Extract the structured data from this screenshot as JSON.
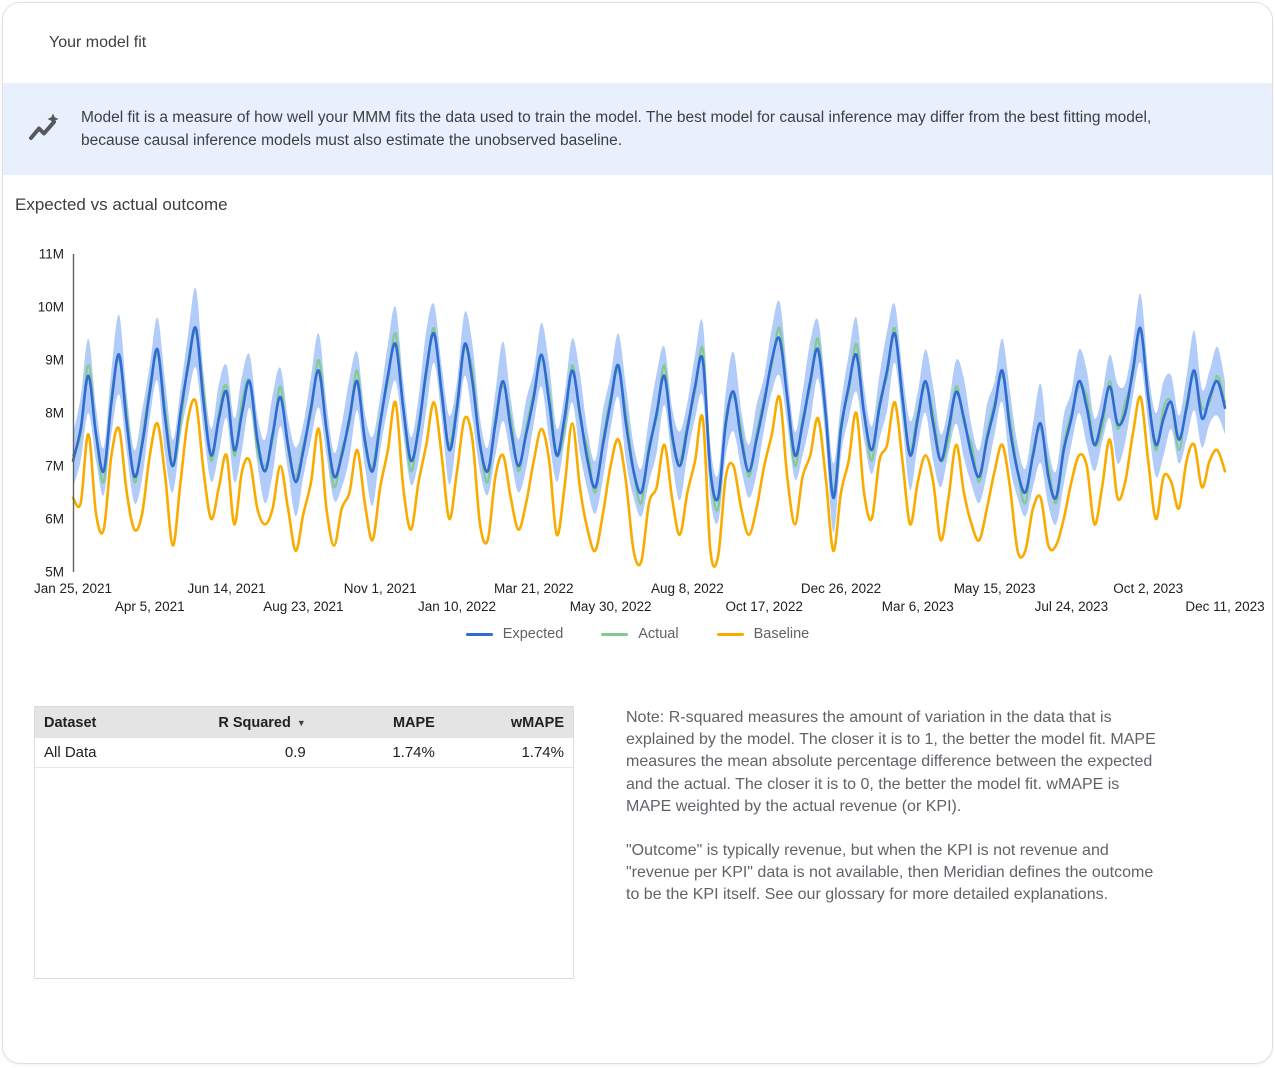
{
  "header": {
    "title": "Your model fit"
  },
  "banner": {
    "icon": "insights-trend-sparkle-icon",
    "background_color": "#e8f0fe",
    "text": "Model fit is a measure of how well your MMM fits the data used to train the model. The best model for causal inference may differ from the best fitting model, because causal inference models must also estimate the unobserved baseline."
  },
  "chart_section": {
    "title": "Expected vs actual outcome"
  },
  "chart_data": {
    "type": "line",
    "title": "Expected vs actual outcome",
    "grid": false,
    "x_unit": "weekly time points",
    "x_range_labels": [
      "Jan 25, 2021",
      "Dec 11, 2023"
    ],
    "x_tick_labels": [
      "Jan 25, 2021",
      "Apr 5, 2021",
      "Jun 14, 2021",
      "Aug 23, 2021",
      "Nov 1, 2021",
      "Jan 10, 2022",
      "Mar 21, 2022",
      "May 30, 2022",
      "Aug 8, 2022",
      "Oct 17, 2022",
      "Dec 26, 2022",
      "Mar 6, 2023",
      "May 15, 2023",
      "Jul 24, 2023",
      "Oct 2, 2023",
      "Dec 11, 2023"
    ],
    "x_ticks_every_n_points": 10,
    "y_tick_labels": [
      "11M",
      "10M",
      "9M",
      "8M",
      "7M",
      "6M",
      "5M"
    ],
    "ylim_millions": [
      5,
      11
    ],
    "legend": {
      "position": "bottom",
      "entries": [
        {
          "label": "Expected",
          "color": "#2f6bd3"
        },
        {
          "label": "Actual",
          "color": "#85c98e"
        },
        {
          "label": "Baseline",
          "color": "#f9ab00"
        }
      ]
    },
    "band": {
      "name": "expected credible interval",
      "color": "#b1ccf8",
      "halfwidth_m": [
        0.5,
        0.6,
        0.7,
        0.5,
        0.45,
        0.6,
        0.75,
        0.55,
        0.5,
        0.65,
        0.5,
        0.6,
        0.7,
        0.5,
        0.45,
        0.6,
        0.75,
        0.55,
        0.5,
        0.65,
        0.5,
        0.6,
        0.7,
        0.5,
        0.45,
        0.6,
        0.75,
        0.55,
        0.5,
        0.65,
        0.5,
        0.6,
        0.7,
        0.5,
        0.45,
        0.6,
        0.75,
        0.55,
        0.5,
        0.65,
        0.5,
        0.6,
        0.7,
        0.5,
        0.45,
        0.6,
        0.75,
        0.55,
        0.5,
        0.65,
        0.5,
        0.6,
        0.7,
        0.5,
        0.45,
        0.6,
        0.75,
        0.55,
        0.5,
        0.65,
        0.5,
        0.6,
        0.7,
        0.5,
        0.45,
        0.6,
        0.75,
        0.55,
        0.5,
        0.65,
        0.5,
        0.6,
        0.7,
        0.5,
        0.45,
        0.6,
        0.75,
        0.55,
        0.5,
        0.65,
        0.5,
        0.6,
        0.7,
        0.5,
        0.45,
        0.6,
        0.75,
        0.55,
        0.5,
        0.65,
        0.5,
        0.6,
        0.7,
        0.5,
        0.45,
        0.6,
        0.75,
        0.55,
        0.5,
        0.65,
        0.5,
        0.6,
        0.7,
        0.5,
        0.45,
        0.6,
        0.75,
        0.55,
        0.5,
        0.65,
        0.5,
        0.6,
        0.7,
        0.5,
        0.45,
        0.6,
        0.75,
        0.55,
        0.5,
        0.65,
        0.5,
        0.6,
        0.7,
        0.5,
        0.45,
        0.6,
        0.75,
        0.55,
        0.5,
        0.65,
        0.5,
        0.6,
        0.7,
        0.5,
        0.45,
        0.6,
        0.75,
        0.55,
        0.5,
        0.65,
        0.5,
        0.6,
        0.7,
        0.5,
        0.45,
        0.6,
        0.75,
        0.55,
        0.5,
        0.65,
        0.5
      ]
    },
    "series": [
      {
        "name": "Expected",
        "color": "#2f6bd3",
        "values_m": [
          7.1,
          7.7,
          8.7,
          7.6,
          6.9,
          8.2,
          9.1,
          7.8,
          6.8,
          7.4,
          8.4,
          9.2,
          7.9,
          7.0,
          8.0,
          8.9,
          9.6,
          8.2,
          7.2,
          7.9,
          8.4,
          7.3,
          8.0,
          8.6,
          7.5,
          6.9,
          7.6,
          8.3,
          7.4,
          6.7,
          7.3,
          8.1,
          8.8,
          7.7,
          6.8,
          7.2,
          7.9,
          8.6,
          7.5,
          6.9,
          7.8,
          8.7,
          9.3,
          8.1,
          7.1,
          7.7,
          8.8,
          9.5,
          8.4,
          7.3,
          8.1,
          9.3,
          8.6,
          7.4,
          6.9,
          7.8,
          8.6,
          7.7,
          7.0,
          7.6,
          8.3,
          9.1,
          8.2,
          7.2,
          7.9,
          8.8,
          8.0,
          7.1,
          6.6,
          7.4,
          8.2,
          8.9,
          7.8,
          6.9,
          6.5,
          7.3,
          8.0,
          8.7,
          7.6,
          7.0,
          7.7,
          8.5,
          9.0,
          6.9,
          6.4,
          7.8,
          8.4,
          7.5,
          6.9,
          7.5,
          8.2,
          9.0,
          9.4,
          8.3,
          7.2,
          7.8,
          8.6,
          9.2,
          8.0,
          6.4,
          7.7,
          8.5,
          9.1,
          8.0,
          7.3,
          8.1,
          8.8,
          9.5,
          8.3,
          7.2,
          7.9,
          8.6,
          7.8,
          7.1,
          7.7,
          8.4,
          7.9,
          7.2,
          6.8,
          7.5,
          8.1,
          8.8,
          7.7,
          6.9,
          6.5,
          7.2,
          7.8,
          6.8,
          6.4,
          7.3,
          7.9,
          8.6,
          8.1,
          7.4,
          7.9,
          8.5,
          7.8,
          8.0,
          8.8,
          9.6,
          8.3,
          7.4,
          7.9,
          8.2,
          7.5,
          8.1,
          8.8,
          7.9,
          8.3,
          8.6,
          8.1
        ]
      },
      {
        "name": "Actual",
        "color": "#85c98e",
        "values_m": [
          7.2,
          7.6,
          8.9,
          7.6,
          6.7,
          8.3,
          9.0,
          8.0,
          6.7,
          7.5,
          8.5,
          9.1,
          8.1,
          7.0,
          7.8,
          9.0,
          9.5,
          8.4,
          7.1,
          8.0,
          8.5,
          7.2,
          8.2,
          8.6,
          7.3,
          7.0,
          7.5,
          8.5,
          7.3,
          6.8,
          7.4,
          8.0,
          9.0,
          7.7,
          6.6,
          7.3,
          7.8,
          8.8,
          7.4,
          7.0,
          7.9,
          8.6,
          9.5,
          8.1,
          6.9,
          7.8,
          8.7,
          9.6,
          8.3,
          7.4,
          8.2,
          9.2,
          8.8,
          7.4,
          6.7,
          7.9,
          8.5,
          7.9,
          6.9,
          7.7,
          8.4,
          9.0,
          8.4,
          7.2,
          7.7,
          8.9,
          7.9,
          7.3,
          6.5,
          7.5,
          8.3,
          8.8,
          8.0,
          6.9,
          6.3,
          7.4,
          7.9,
          8.9,
          7.5,
          7.1,
          7.8,
          8.4,
          9.2,
          6.9,
          6.2,
          7.9,
          8.3,
          7.7,
          6.8,
          7.6,
          8.3,
          8.9,
          9.6,
          8.3,
          7.0,
          7.9,
          8.5,
          9.4,
          7.9,
          6.5,
          7.8,
          8.4,
          9.3,
          8.0,
          7.1,
          8.2,
          8.7,
          9.6,
          8.2,
          7.3,
          8.0,
          8.5,
          8.0,
          7.1,
          7.5,
          8.5,
          7.8,
          7.4,
          6.7,
          7.6,
          8.2,
          8.7,
          7.9,
          6.9,
          6.3,
          7.3,
          7.7,
          7.0,
          6.3,
          7.4,
          8.0,
          8.5,
          8.3,
          7.4,
          7.7,
          8.6,
          7.7,
          8.2,
          8.7,
          9.6,
          8.4,
          7.3,
          8.1,
          8.2,
          7.3,
          8.2,
          8.7,
          8.1,
          8.2,
          8.7,
          8.2
        ]
      },
      {
        "name": "Baseline",
        "color": "#f9ab00",
        "values_m": [
          6.4,
          6.3,
          7.6,
          6.1,
          5.8,
          7.2,
          7.7,
          6.5,
          5.8,
          6.1,
          7.2,
          7.8,
          6.8,
          5.5,
          6.7,
          7.9,
          8.2,
          6.9,
          6.0,
          6.6,
          7.2,
          5.9,
          6.9,
          7.1,
          6.2,
          5.9,
          6.2,
          7.0,
          6.2,
          5.4,
          6.1,
          6.7,
          7.7,
          6.2,
          5.5,
          6.2,
          6.5,
          7.3,
          6.3,
          5.6,
          6.6,
          7.3,
          8.2,
          6.6,
          5.8,
          6.7,
          7.4,
          8.2,
          7.2,
          6.0,
          6.9,
          7.9,
          7.5,
          5.9,
          5.6,
          6.8,
          7.2,
          6.4,
          5.8,
          6.3,
          7.1,
          7.7,
          7.1,
          5.7,
          6.6,
          7.8,
          6.6,
          5.8,
          5.4,
          6.1,
          7.0,
          7.5,
          6.7,
          5.4,
          5.2,
          6.3,
          6.6,
          7.4,
          6.4,
          5.7,
          6.5,
          7.1,
          7.9,
          5.4,
          5.3,
          6.8,
          7.0,
          6.2,
          5.7,
          6.2,
          7.0,
          7.6,
          8.3,
          6.8,
          5.9,
          6.8,
          7.2,
          7.9,
          6.8,
          5.4,
          6.5,
          7.1,
          8.0,
          6.5,
          6.0,
          7.1,
          7.4,
          8.2,
          7.1,
          5.9,
          6.7,
          7.2,
          6.7,
          5.6,
          6.4,
          7.4,
          6.5,
          5.9,
          5.6,
          6.2,
          6.9,
          7.4,
          6.6,
          5.4,
          5.4,
          6.2,
          6.4,
          5.5,
          5.5,
          6.0,
          6.7,
          7.2,
          7.0,
          5.9,
          6.6,
          7.5,
          6.4,
          6.7,
          7.6,
          8.3,
          7.1,
          6.0,
          6.8,
          6.7,
          6.2,
          7.1,
          7.4,
          6.6,
          7.1,
          7.3,
          6.9
        ]
      }
    ]
  },
  "table": {
    "headers": [
      {
        "label": "Dataset"
      },
      {
        "label": "R Squared",
        "sort_indicator": "▼"
      },
      {
        "label": "MAPE"
      },
      {
        "label": "wMAPE"
      }
    ],
    "rows": [
      {
        "cells": [
          "All Data",
          "0.9",
          "1.74%",
          "1.74%"
        ]
      }
    ]
  },
  "notes": {
    "paragraph1": "Note: R-squared measures the amount of variation in the data that is explained by the model. The closer it is to 1, the better the model fit. MAPE measures the mean absolute percentage difference between the expected and the actual. The closer it is to 0, the better the model fit. wMAPE is MAPE weighted by the actual revenue (or KPI).",
    "paragraph2": "\"Outcome\" is typically revenue, but when the KPI is not revenue and \"revenue per KPI\" data is not available, then Meridian defines the outcome to be the KPI itself. See our glossary for more detailed explanations."
  }
}
